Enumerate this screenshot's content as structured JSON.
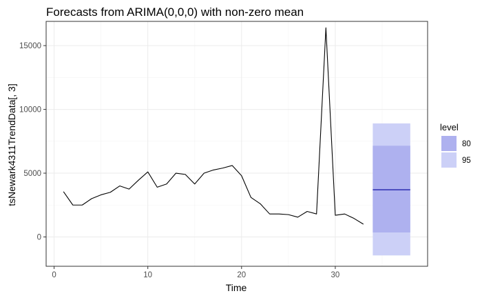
{
  "chart_data": {
    "type": "line",
    "title": "Forecasts from ARIMA(0,0,0) with non-zero mean",
    "xlabel": "Time",
    "ylabel": "tsNewark4311TrendData[, 3]",
    "xlim": [
      -0.85,
      39.85
    ],
    "ylim": [
      -2300,
      16900
    ],
    "xticks": [
      0,
      10,
      20,
      30
    ],
    "yticks": [
      0,
      5000,
      10000,
      15000
    ],
    "xtick_labels": [
      "0",
      "10",
      "20",
      "30"
    ],
    "ytick_labels": [
      "0",
      "5000",
      "10000",
      "15000"
    ],
    "grid": true,
    "series": [
      {
        "x": [
          1,
          2,
          3,
          4,
          5,
          6,
          7,
          8,
          9,
          10,
          11,
          12,
          13,
          14,
          15,
          16,
          17,
          18,
          19,
          20,
          21,
          22,
          23,
          24,
          25,
          26,
          27,
          28,
          29,
          30,
          31,
          32,
          33
        ],
        "values": [
          3550,
          2500,
          2500,
          3000,
          3300,
          3500,
          4000,
          3750,
          4450,
          5100,
          3900,
          4150,
          5000,
          4900,
          4150,
          5000,
          5250,
          5400,
          5600,
          4800,
          3100,
          2600,
          1800,
          1800,
          1750,
          1550,
          2000,
          1800,
          16400,
          1700,
          1800,
          1450,
          1000
        ]
      }
    ],
    "forecast": {
      "x_start": 34,
      "x_end": 38,
      "mean": 3700,
      "lo80": 350,
      "hi80": 7150,
      "lo95": -1450,
      "hi95": 8900
    },
    "legend": {
      "title": "level",
      "position": "right",
      "items": [
        {
          "label": "80",
          "color": "#aeb1ef"
        },
        {
          "label": "95",
          "color": "#ccd0f7"
        }
      ]
    },
    "colors": {
      "line": "#000000",
      "mean_line": "#00009b",
      "panel_border": "#333333"
    }
  }
}
